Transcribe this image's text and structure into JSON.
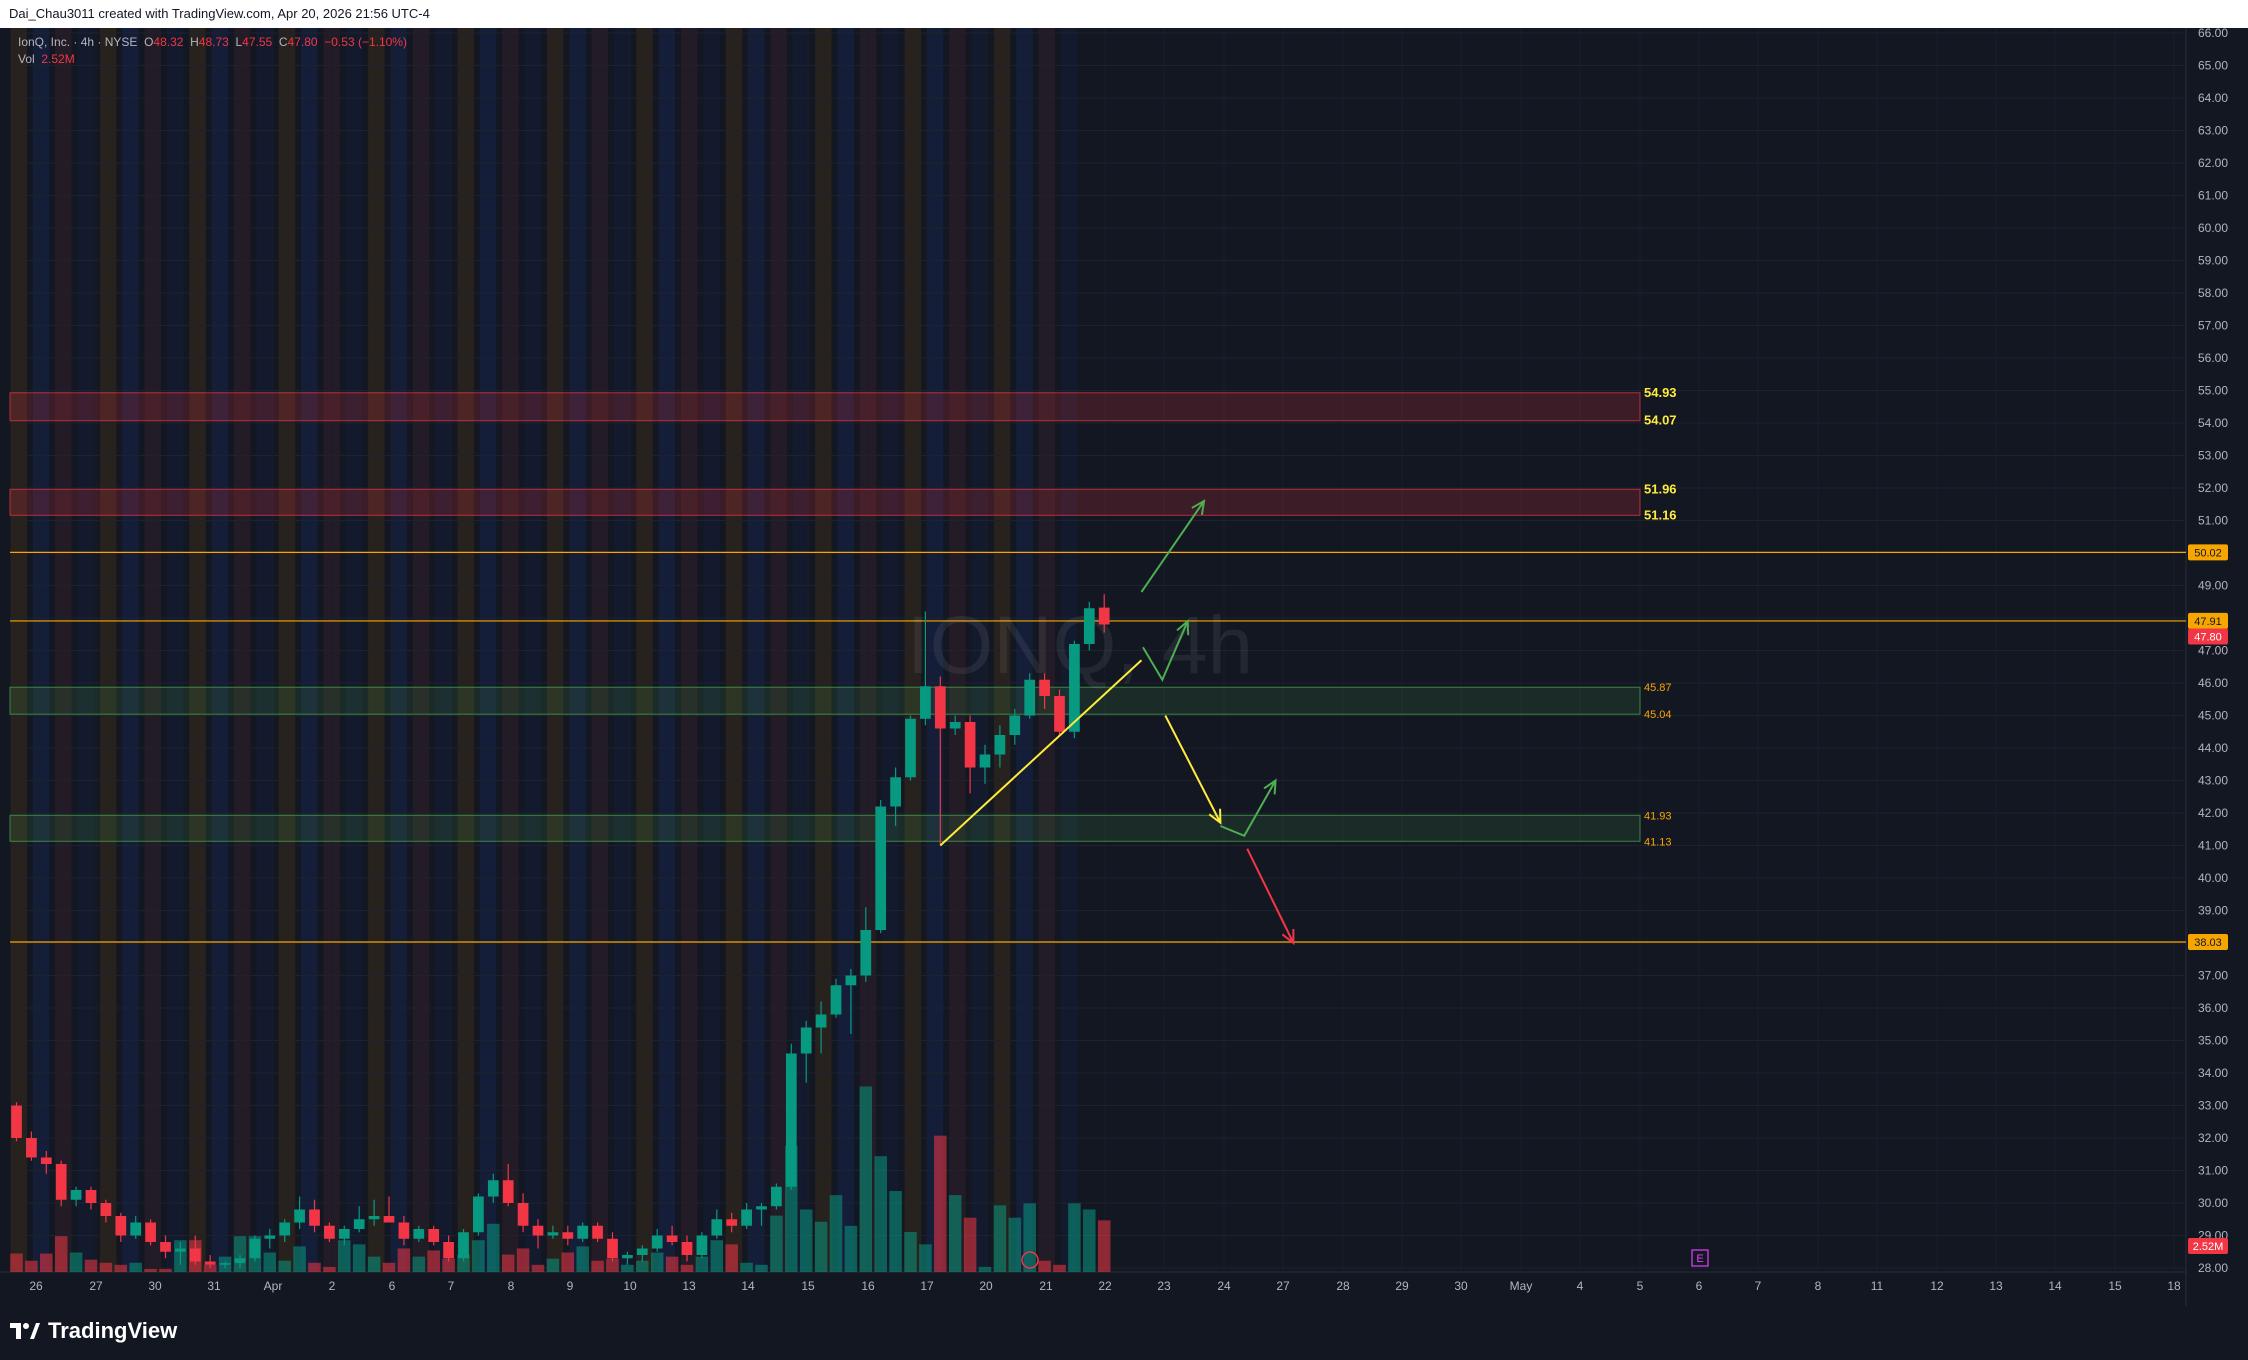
{
  "header": {
    "attribution": "Dai_Chau3011 created with TradingView.com, Apr 20, 2026 21:56 UTC-4"
  },
  "legend": {
    "symbol": "IonQ, Inc. · 4h · NYSE",
    "o_label": "O",
    "o": "48.32",
    "h_label": "H",
    "h": "48.73",
    "l_label": "L",
    "l": "47.55",
    "c_label": "C",
    "c": "47.80",
    "change": "−0.53 (−1.10%)",
    "vol_label": "Vol",
    "vol": "2.52M"
  },
  "watermark": "IONQ, 4h",
  "brand": {
    "name": "TradingView"
  },
  "earnings_marker": "E",
  "colors": {
    "background": "#131722",
    "up": "#089981",
    "down": "#f23645",
    "level_orange": "#f7a600",
    "zone_red": "#f23645",
    "zone_green": "#4caf50",
    "trendline": "#ffeb3b",
    "arrow_green": "#4caf50",
    "arrow_yellow": "#ffeb3b",
    "arrow_red": "#f23645",
    "last_price": "#f23645"
  },
  "chart_data": {
    "type": "candlestick",
    "symbol": "IONQ",
    "interval": "4h",
    "ylim": [
      28,
      66
    ],
    "y_ticks": [
      "28.00",
      "29.00",
      "30.00",
      "31.00",
      "32.00",
      "33.00",
      "34.00",
      "35.00",
      "36.00",
      "37.00",
      "38.00",
      "39.00",
      "40.00",
      "41.00",
      "42.00",
      "43.00",
      "44.00",
      "45.00",
      "46.00",
      "47.00",
      "48.00",
      "49.00",
      "50.00",
      "51.00",
      "52.00",
      "53.00",
      "54.00",
      "55.00",
      "56.00",
      "57.00",
      "58.00",
      "59.00",
      "60.00",
      "61.00",
      "62.00",
      "63.00",
      "64.00",
      "65.00",
      "66.00"
    ],
    "x_ticks": [
      "26",
      "27",
      "30",
      "31",
      "Apr",
      "2",
      "6",
      "7",
      "8",
      "9",
      "10",
      "13",
      "14",
      "15",
      "16",
      "17",
      "20",
      "21",
      "22",
      "23",
      "24",
      "27",
      "28",
      "29",
      "30",
      "May",
      "4",
      "5",
      "6",
      "7",
      "8",
      "11",
      "12",
      "13",
      "14",
      "15",
      "18"
    ],
    "bars_per_day": 4,
    "candles": [
      [
        33.0,
        33.1,
        31.9,
        32.0
      ],
      [
        32.0,
        32.2,
        31.3,
        31.4
      ],
      [
        31.4,
        31.6,
        30.9,
        31.2
      ],
      [
        31.2,
        31.3,
        29.9,
        30.1
      ],
      [
        30.1,
        30.5,
        29.9,
        30.4
      ],
      [
        30.4,
        30.5,
        29.8,
        30.0
      ],
      [
        30.0,
        30.1,
        29.4,
        29.6
      ],
      [
        29.6,
        29.7,
        28.8,
        29.0
      ],
      [
        29.0,
        29.6,
        28.9,
        29.4
      ],
      [
        29.4,
        29.5,
        28.7,
        28.8
      ],
      [
        28.8,
        29.0,
        28.3,
        28.5
      ],
      [
        28.5,
        28.8,
        28.1,
        28.6
      ],
      [
        28.6,
        29.0,
        28.1,
        28.2
      ],
      [
        28.2,
        28.4,
        28.0,
        28.1
      ],
      [
        28.1,
        28.2,
        28.0,
        28.15
      ],
      [
        28.15,
        28.4,
        28.0,
        28.3
      ],
      [
        28.3,
        29.0,
        28.2,
        28.9
      ],
      [
        28.9,
        29.2,
        28.6,
        29.0
      ],
      [
        29.0,
        29.5,
        28.8,
        29.4
      ],
      [
        29.4,
        30.2,
        29.2,
        29.8
      ],
      [
        29.8,
        30.1,
        29.1,
        29.3
      ],
      [
        29.3,
        29.4,
        28.8,
        28.9
      ],
      [
        28.9,
        29.3,
        28.7,
        29.2
      ],
      [
        29.2,
        29.9,
        29.1,
        29.5
      ],
      [
        29.5,
        30.1,
        29.3,
        29.6
      ],
      [
        29.6,
        30.2,
        29.4,
        29.4
      ],
      [
        29.4,
        29.6,
        28.7,
        28.9
      ],
      [
        28.9,
        29.3,
        28.8,
        29.2
      ],
      [
        29.2,
        29.3,
        28.7,
        28.8
      ],
      [
        28.8,
        29.0,
        28.2,
        28.3
      ],
      [
        28.3,
        29.2,
        28.2,
        29.1
      ],
      [
        29.1,
        30.3,
        29.0,
        30.2
      ],
      [
        30.2,
        30.9,
        30.0,
        30.7
      ],
      [
        30.7,
        31.2,
        29.9,
        30.0
      ],
      [
        30.0,
        30.3,
        29.1,
        29.3
      ],
      [
        29.3,
        29.5,
        28.6,
        29.0
      ],
      [
        29.0,
        29.3,
        28.9,
        29.1
      ],
      [
        29.1,
        29.3,
        28.7,
        28.9
      ],
      [
        28.9,
        29.4,
        28.8,
        29.3
      ],
      [
        29.3,
        29.4,
        28.8,
        28.9
      ],
      [
        28.9,
        29.1,
        28.2,
        28.3
      ],
      [
        28.3,
        28.5,
        28.1,
        28.4
      ],
      [
        28.4,
        28.7,
        28.2,
        28.6
      ],
      [
        28.6,
        29.2,
        28.5,
        29.0
      ],
      [
        29.0,
        29.3,
        28.7,
        28.8
      ],
      [
        28.8,
        29.0,
        28.2,
        28.4
      ],
      [
        28.4,
        29.1,
        28.3,
        29.0
      ],
      [
        29.0,
        29.8,
        28.9,
        29.5
      ],
      [
        29.5,
        29.7,
        29.1,
        29.3
      ],
      [
        29.3,
        30.0,
        29.2,
        29.8
      ],
      [
        29.8,
        30.0,
        29.3,
        29.9
      ],
      [
        29.9,
        30.6,
        29.8,
        30.5
      ],
      [
        30.5,
        34.9,
        30.4,
        34.6
      ],
      [
        34.6,
        35.6,
        33.7,
        35.4
      ],
      [
        35.4,
        36.2,
        34.6,
        35.8
      ],
      [
        35.8,
        36.9,
        35.7,
        36.7
      ],
      [
        36.7,
        37.2,
        35.2,
        37.0
      ],
      [
        37.0,
        39.1,
        36.8,
        38.4
      ],
      [
        38.4,
        42.4,
        38.3,
        42.2
      ],
      [
        42.2,
        43.4,
        41.6,
        43.1
      ],
      [
        43.1,
        45.0,
        43.0,
        44.9
      ],
      [
        44.9,
        48.2,
        44.7,
        45.9
      ],
      [
        45.9,
        46.2,
        41.0,
        44.6
      ],
      [
        44.6,
        45.0,
        44.4,
        44.8
      ],
      [
        44.8,
        45.0,
        42.6,
        43.4
      ],
      [
        43.4,
        44.1,
        42.9,
        43.8
      ],
      [
        43.8,
        44.7,
        43.4,
        44.4
      ],
      [
        44.4,
        45.2,
        44.1,
        45.0
      ],
      [
        45.0,
        46.3,
        44.9,
        46.1
      ],
      [
        46.1,
        46.3,
        45.2,
        45.6
      ],
      [
        45.6,
        45.8,
        44.4,
        44.5
      ],
      [
        44.5,
        47.3,
        44.3,
        47.2
      ],
      [
        47.2,
        48.5,
        47.0,
        48.3
      ],
      [
        48.32,
        48.73,
        47.55,
        47.8
      ]
    ],
    "volume": [
      0.9,
      0.55,
      0.9,
      1.75,
      0.95,
      0.6,
      0.45,
      0.35,
      0.45,
      0.15,
      0.15,
      1.55,
      1.55,
      0.35,
      0.75,
      1.75,
      1.75,
      0.95,
      0.55,
      1.25,
      0.45,
      0.25,
      1.55,
      1.35,
      0.75,
      0.45,
      1.15,
      0.75,
      1.05,
      0.65,
      0.85,
      1.55,
      2.35,
      0.85,
      1.15,
      0.35,
      0.65,
      0.95,
      1.25,
      0.55,
      0.65,
      0.35,
      0.55,
      0.95,
      0.75,
      0.35,
      0.75,
      1.55,
      1.35,
      0.45,
      0.35,
      2.75,
      6.15,
      3.05,
      2.45,
      3.75,
      2.25,
      9.05,
      5.65,
      3.95,
      1.95,
      1.35,
      6.65,
      3.75,
      2.65,
      0.25,
      3.25,
      2.65,
      3.35,
      0.55,
      0.35,
      3.35,
      3.05,
      2.52
    ],
    "key_levels": [
      {
        "value": 50.02,
        "label": "50.02"
      },
      {
        "value": 47.91,
        "label": "47.91"
      },
      {
        "value": 38.03,
        "label": "38.03"
      }
    ],
    "last_price": {
      "value": 47.8,
      "label": "47.80"
    },
    "volume_tag": "2.52M",
    "zones": [
      {
        "kind": "resistance",
        "top": 54.93,
        "bottom": 54.07,
        "top_label": "54.93",
        "bottom_label": "54.07"
      },
      {
        "kind": "resistance",
        "top": 51.96,
        "bottom": 51.16,
        "top_label": "51.96",
        "bottom_label": "51.16"
      },
      {
        "kind": "support",
        "top": 45.87,
        "bottom": 45.04,
        "top_label": "45.87",
        "bottom_label": "45.04"
      },
      {
        "kind": "support",
        "top": 41.93,
        "bottom": 41.13,
        "top_label": "41.93",
        "bottom_label": "41.13"
      }
    ],
    "trendline": {
      "from": {
        "bar": 62,
        "price": 41.0
      },
      "to": {
        "bar": 75.5,
        "price": 46.7
      }
    },
    "projections": [
      {
        "color": "green",
        "points": [
          {
            "bar": 75.5,
            "price": 48.8
          },
          {
            "bar": 79.7,
            "price": 51.6
          }
        ]
      },
      {
        "color": "green",
        "points": [
          {
            "bar": 75.6,
            "price": 47.1
          },
          {
            "bar": 76.9,
            "price": 46.1
          },
          {
            "bar": 78.6,
            "price": 47.9
          }
        ]
      },
      {
        "color": "yellow",
        "points": [
          {
            "bar": 77.1,
            "price": 45.0
          },
          {
            "bar": 80.8,
            "price": 41.7
          }
        ]
      },
      {
        "color": "green",
        "points": [
          {
            "bar": 80.8,
            "price": 41.6
          },
          {
            "bar": 82.4,
            "price": 41.3
          },
          {
            "bar": 84.5,
            "price": 43.0
          }
        ]
      },
      {
        "color": "red",
        "points": [
          {
            "bar": 82.6,
            "price": 40.9
          },
          {
            "bar": 85.7,
            "price": 38.0
          }
        ]
      }
    ]
  }
}
